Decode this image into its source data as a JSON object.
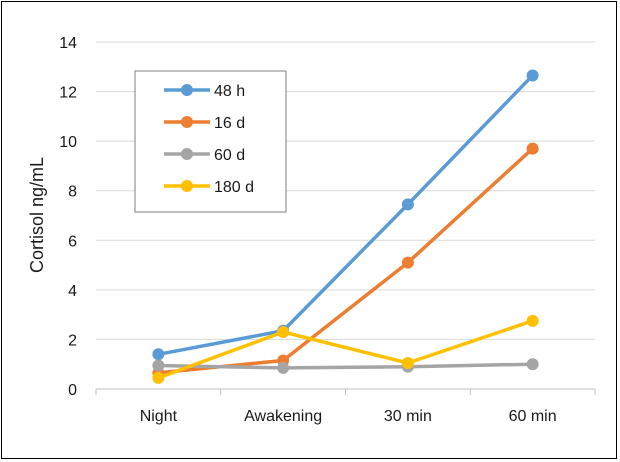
{
  "chart_data": {
    "type": "line",
    "title": "",
    "xlabel": "",
    "ylabel": "Cortisol ng/mL",
    "categories": [
      "Night",
      "Awakening",
      "30 min",
      "60 min"
    ],
    "ylim": [
      0,
      14
    ],
    "yticks": [
      0,
      2,
      4,
      6,
      8,
      10,
      12,
      14
    ],
    "grid": "horizontal",
    "legend_position": "top-left",
    "series": [
      {
        "name": "48 h",
        "color": "#5b9bd5",
        "values": [
          1.4,
          2.35,
          7.45,
          12.65
        ]
      },
      {
        "name": "16 d",
        "color": "#ed7d31",
        "values": [
          0.65,
          1.15,
          5.1,
          9.7
        ]
      },
      {
        "name": "60 d",
        "color": "#a5a5a5",
        "values": [
          0.95,
          0.85,
          0.9,
          1.0
        ]
      },
      {
        "name": "180 d",
        "color": "#ffc000",
        "values": [
          0.45,
          2.3,
          1.05,
          2.75
        ]
      }
    ]
  }
}
